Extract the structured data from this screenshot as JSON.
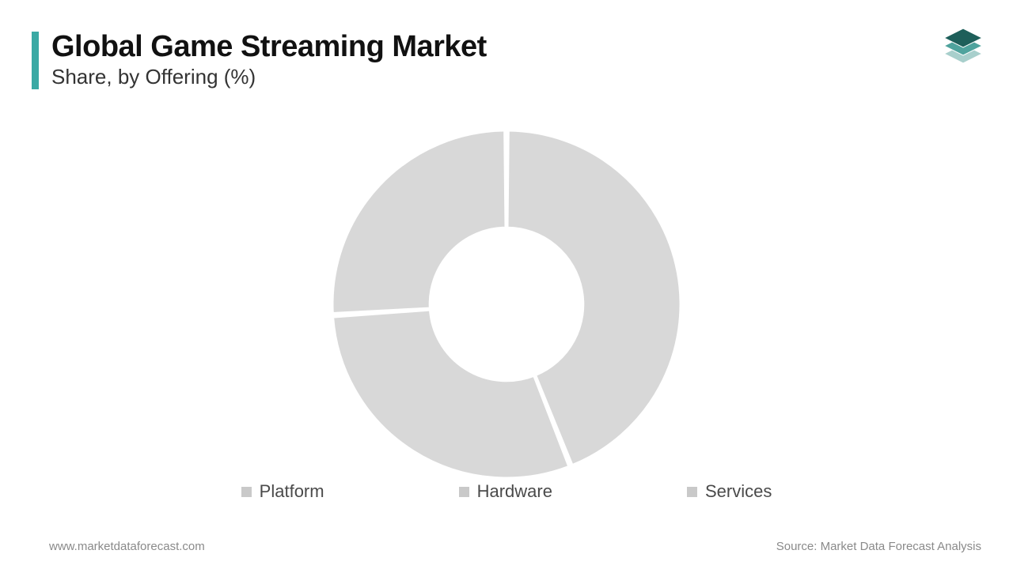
{
  "header": {
    "title": "Global Game Streaming Market",
    "subtitle": "Share, by Offering (%)",
    "accent_color": "#3aa9a4"
  },
  "donut_chart": {
    "type": "pie",
    "inner_radius_ratio": 0.44,
    "outer_radius": 220,
    "gap_deg": 1.2,
    "background_color": "#ffffff",
    "slices": [
      {
        "label": "Platform",
        "value": 44,
        "color": "#d8d8d8"
      },
      {
        "label": "Hardware",
        "value": 30,
        "color": "#d8d8d8"
      },
      {
        "label": "Services",
        "value": 26,
        "color": "#d8d8d8"
      }
    ],
    "start_angle_deg": -90,
    "separator_stroke": "#ffffff",
    "separator_width": 3
  },
  "legend": {
    "items": [
      {
        "label": "Platform",
        "swatch": "#c9c9c9"
      },
      {
        "label": "Hardware",
        "swatch": "#c9c9c9"
      },
      {
        "label": "Services",
        "swatch": "#c9c9c9"
      }
    ],
    "text_color": "#4a4a4a",
    "fontsize": 22
  },
  "footer": {
    "left": "www.marketdataforecast.com",
    "right": "Source: Market Data Forecast Analysis",
    "color": "#8a8a8a"
  },
  "logo": {
    "top_color": "#1e5f5a",
    "mid_color": "#4fa39d",
    "bot_color": "#a8cfcc"
  }
}
